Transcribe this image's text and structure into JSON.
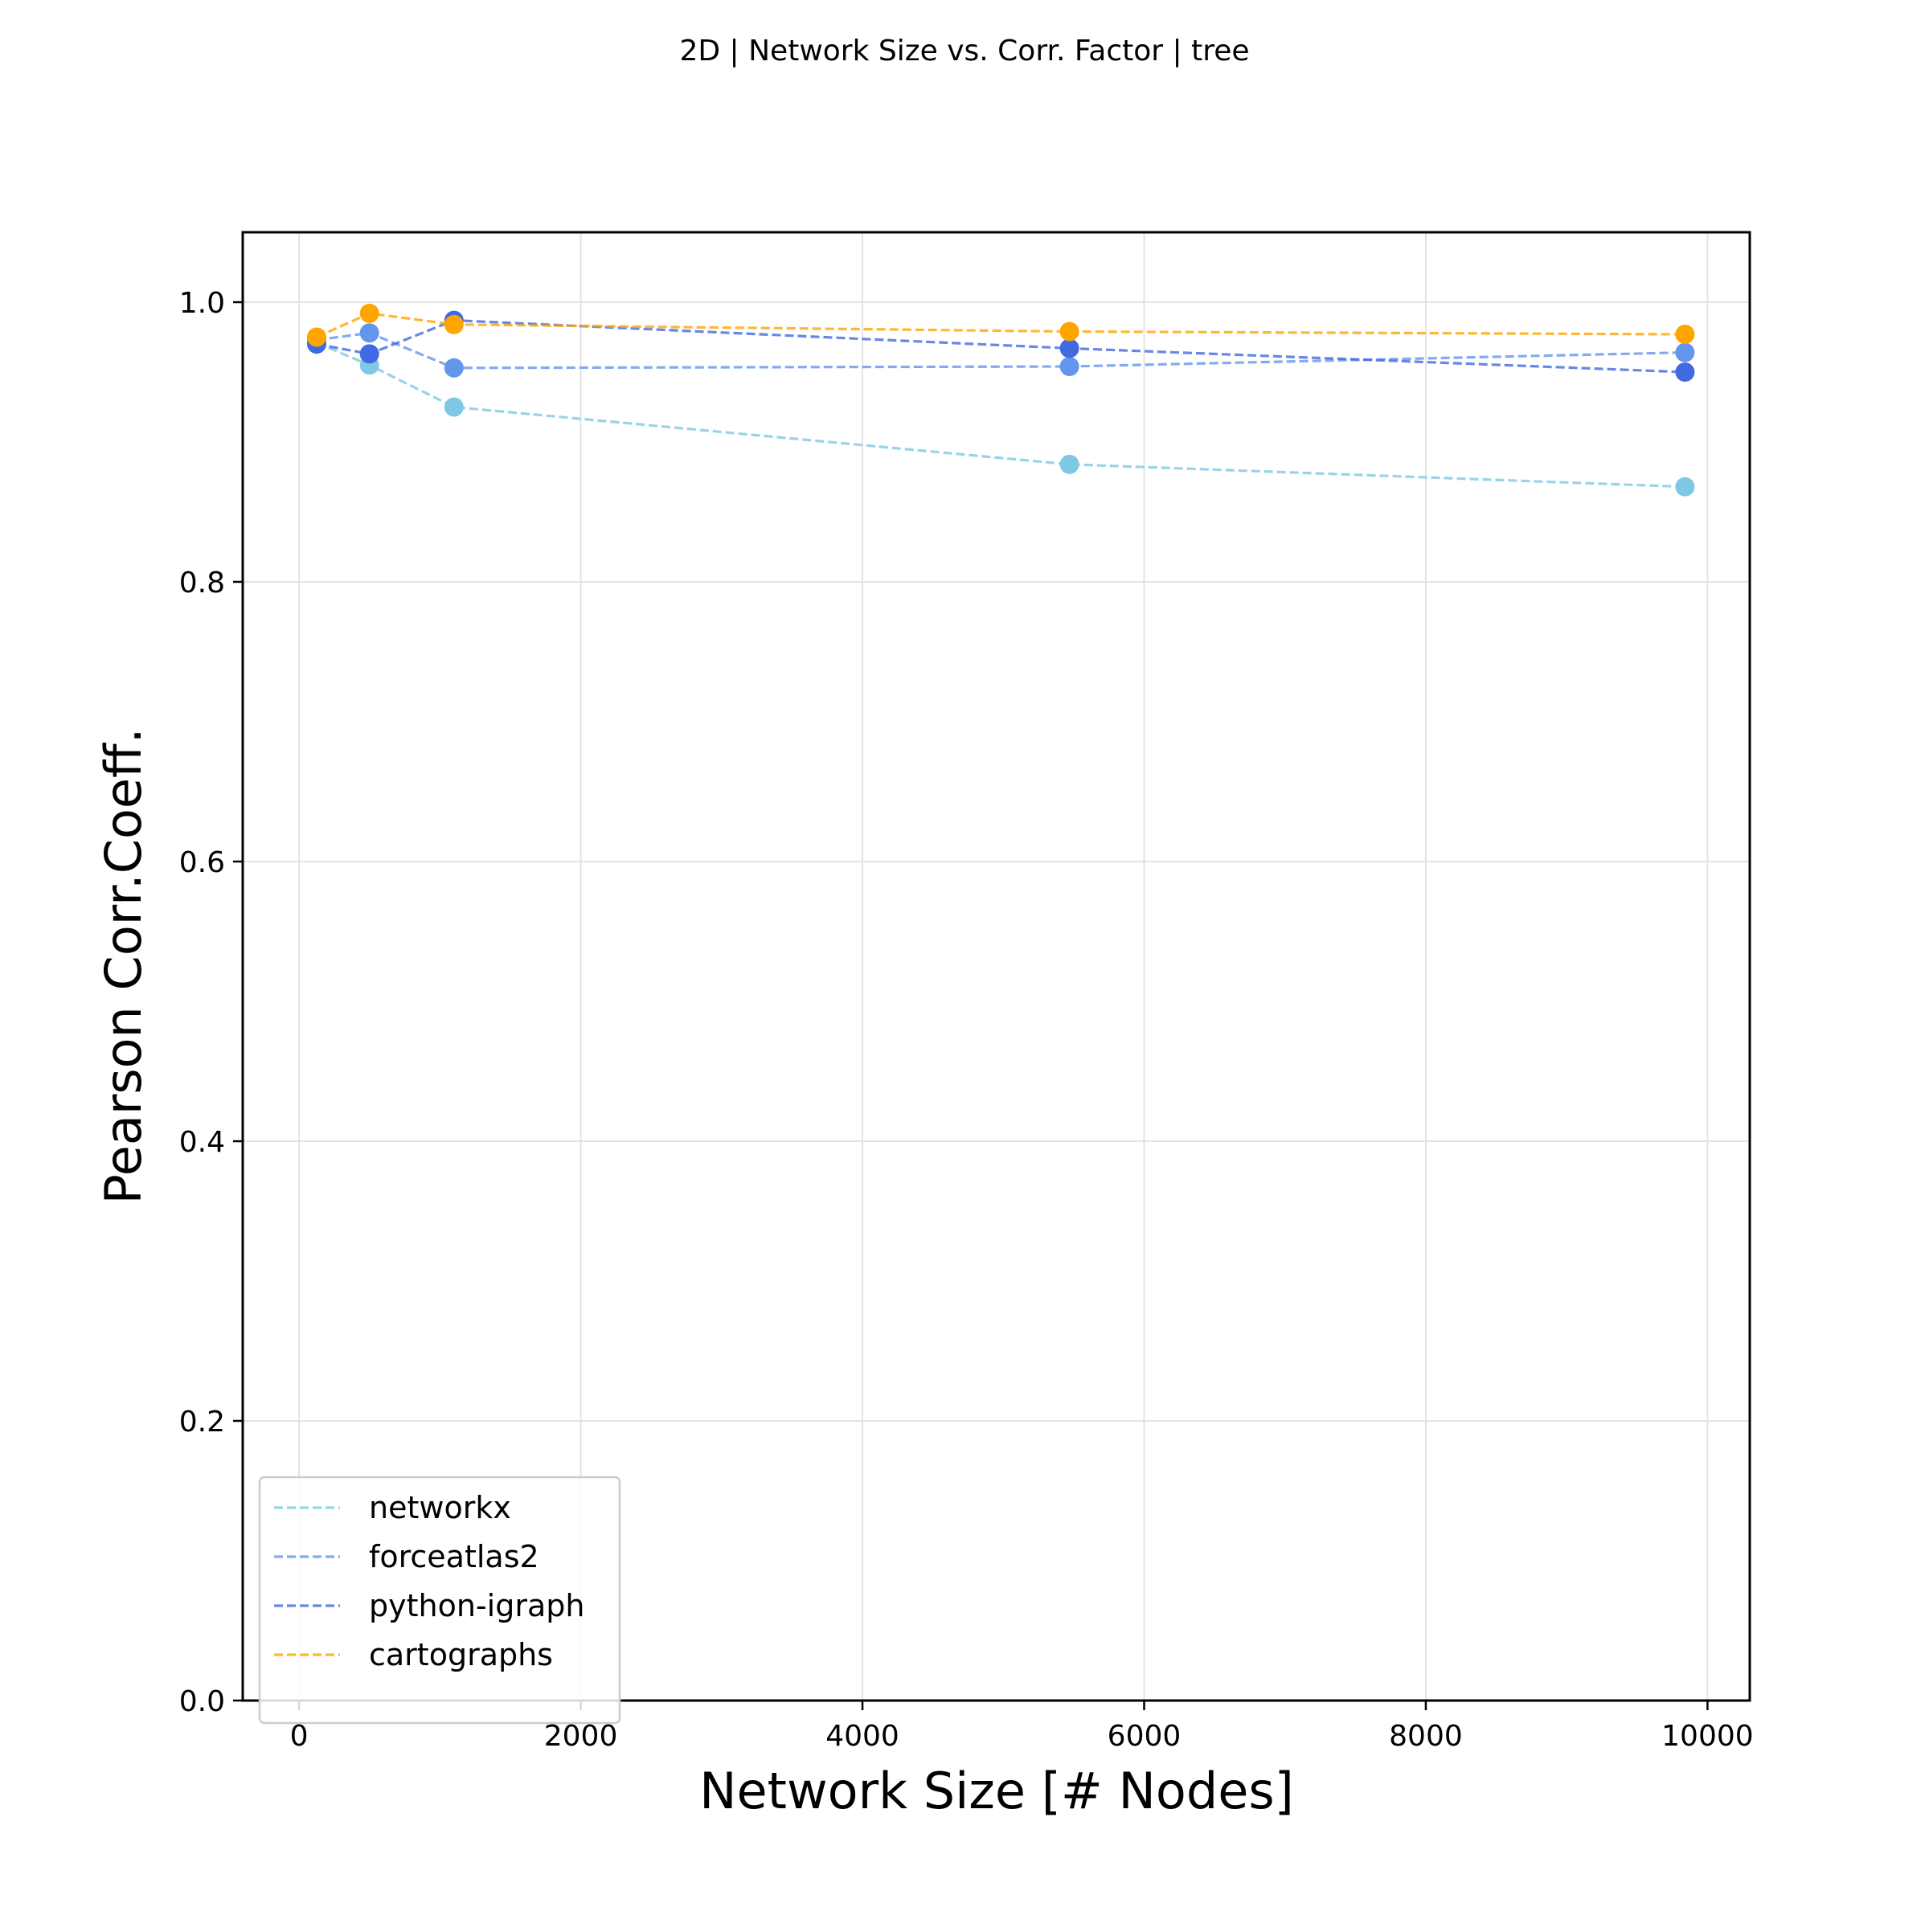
{
  "chart_data": {
    "type": "line",
    "title": "2D | Network Size vs. Corr. Factor | tree",
    "xlabel": "Network Size [# Nodes]",
    "ylabel": "Pearson Corr.Coeff.",
    "xlim": [
      -400,
      10300
    ],
    "ylim": [
      0.0,
      1.05
    ],
    "xticks": [
      0,
      2000,
      4000,
      6000,
      8000,
      10000
    ],
    "xtick_labels": [
      "0",
      "2000",
      "4000",
      "6000",
      "8000",
      "10000"
    ],
    "yticks": [
      0.0,
      0.2,
      0.4,
      0.6,
      0.8,
      1.0
    ],
    "ytick_labels": [
      "0.0",
      "0.2",
      "0.4",
      "0.6",
      "0.8",
      "1.0"
    ],
    "grid": true,
    "legend_position": "lower-left",
    "line_style": "dashed",
    "x": [
      125,
      500,
      1100,
      5470,
      9840
    ],
    "series": [
      {
        "name": "networkx",
        "color": "#7EC8E3",
        "values": [
          0.971,
          0.955,
          0.925,
          0.884,
          0.868
        ]
      },
      {
        "name": "forceatlas2",
        "color": "#6495ED",
        "values": [
          0.973,
          0.978,
          0.953,
          0.954,
          0.964
        ]
      },
      {
        "name": "python-igraph",
        "color": "#4169E1",
        "values": [
          0.97,
          0.963,
          0.987,
          0.967,
          0.95
        ]
      },
      {
        "name": "cartographs",
        "color": "#FFA500",
        "values": [
          0.975,
          0.992,
          0.984,
          0.979,
          0.977
        ]
      }
    ]
  }
}
